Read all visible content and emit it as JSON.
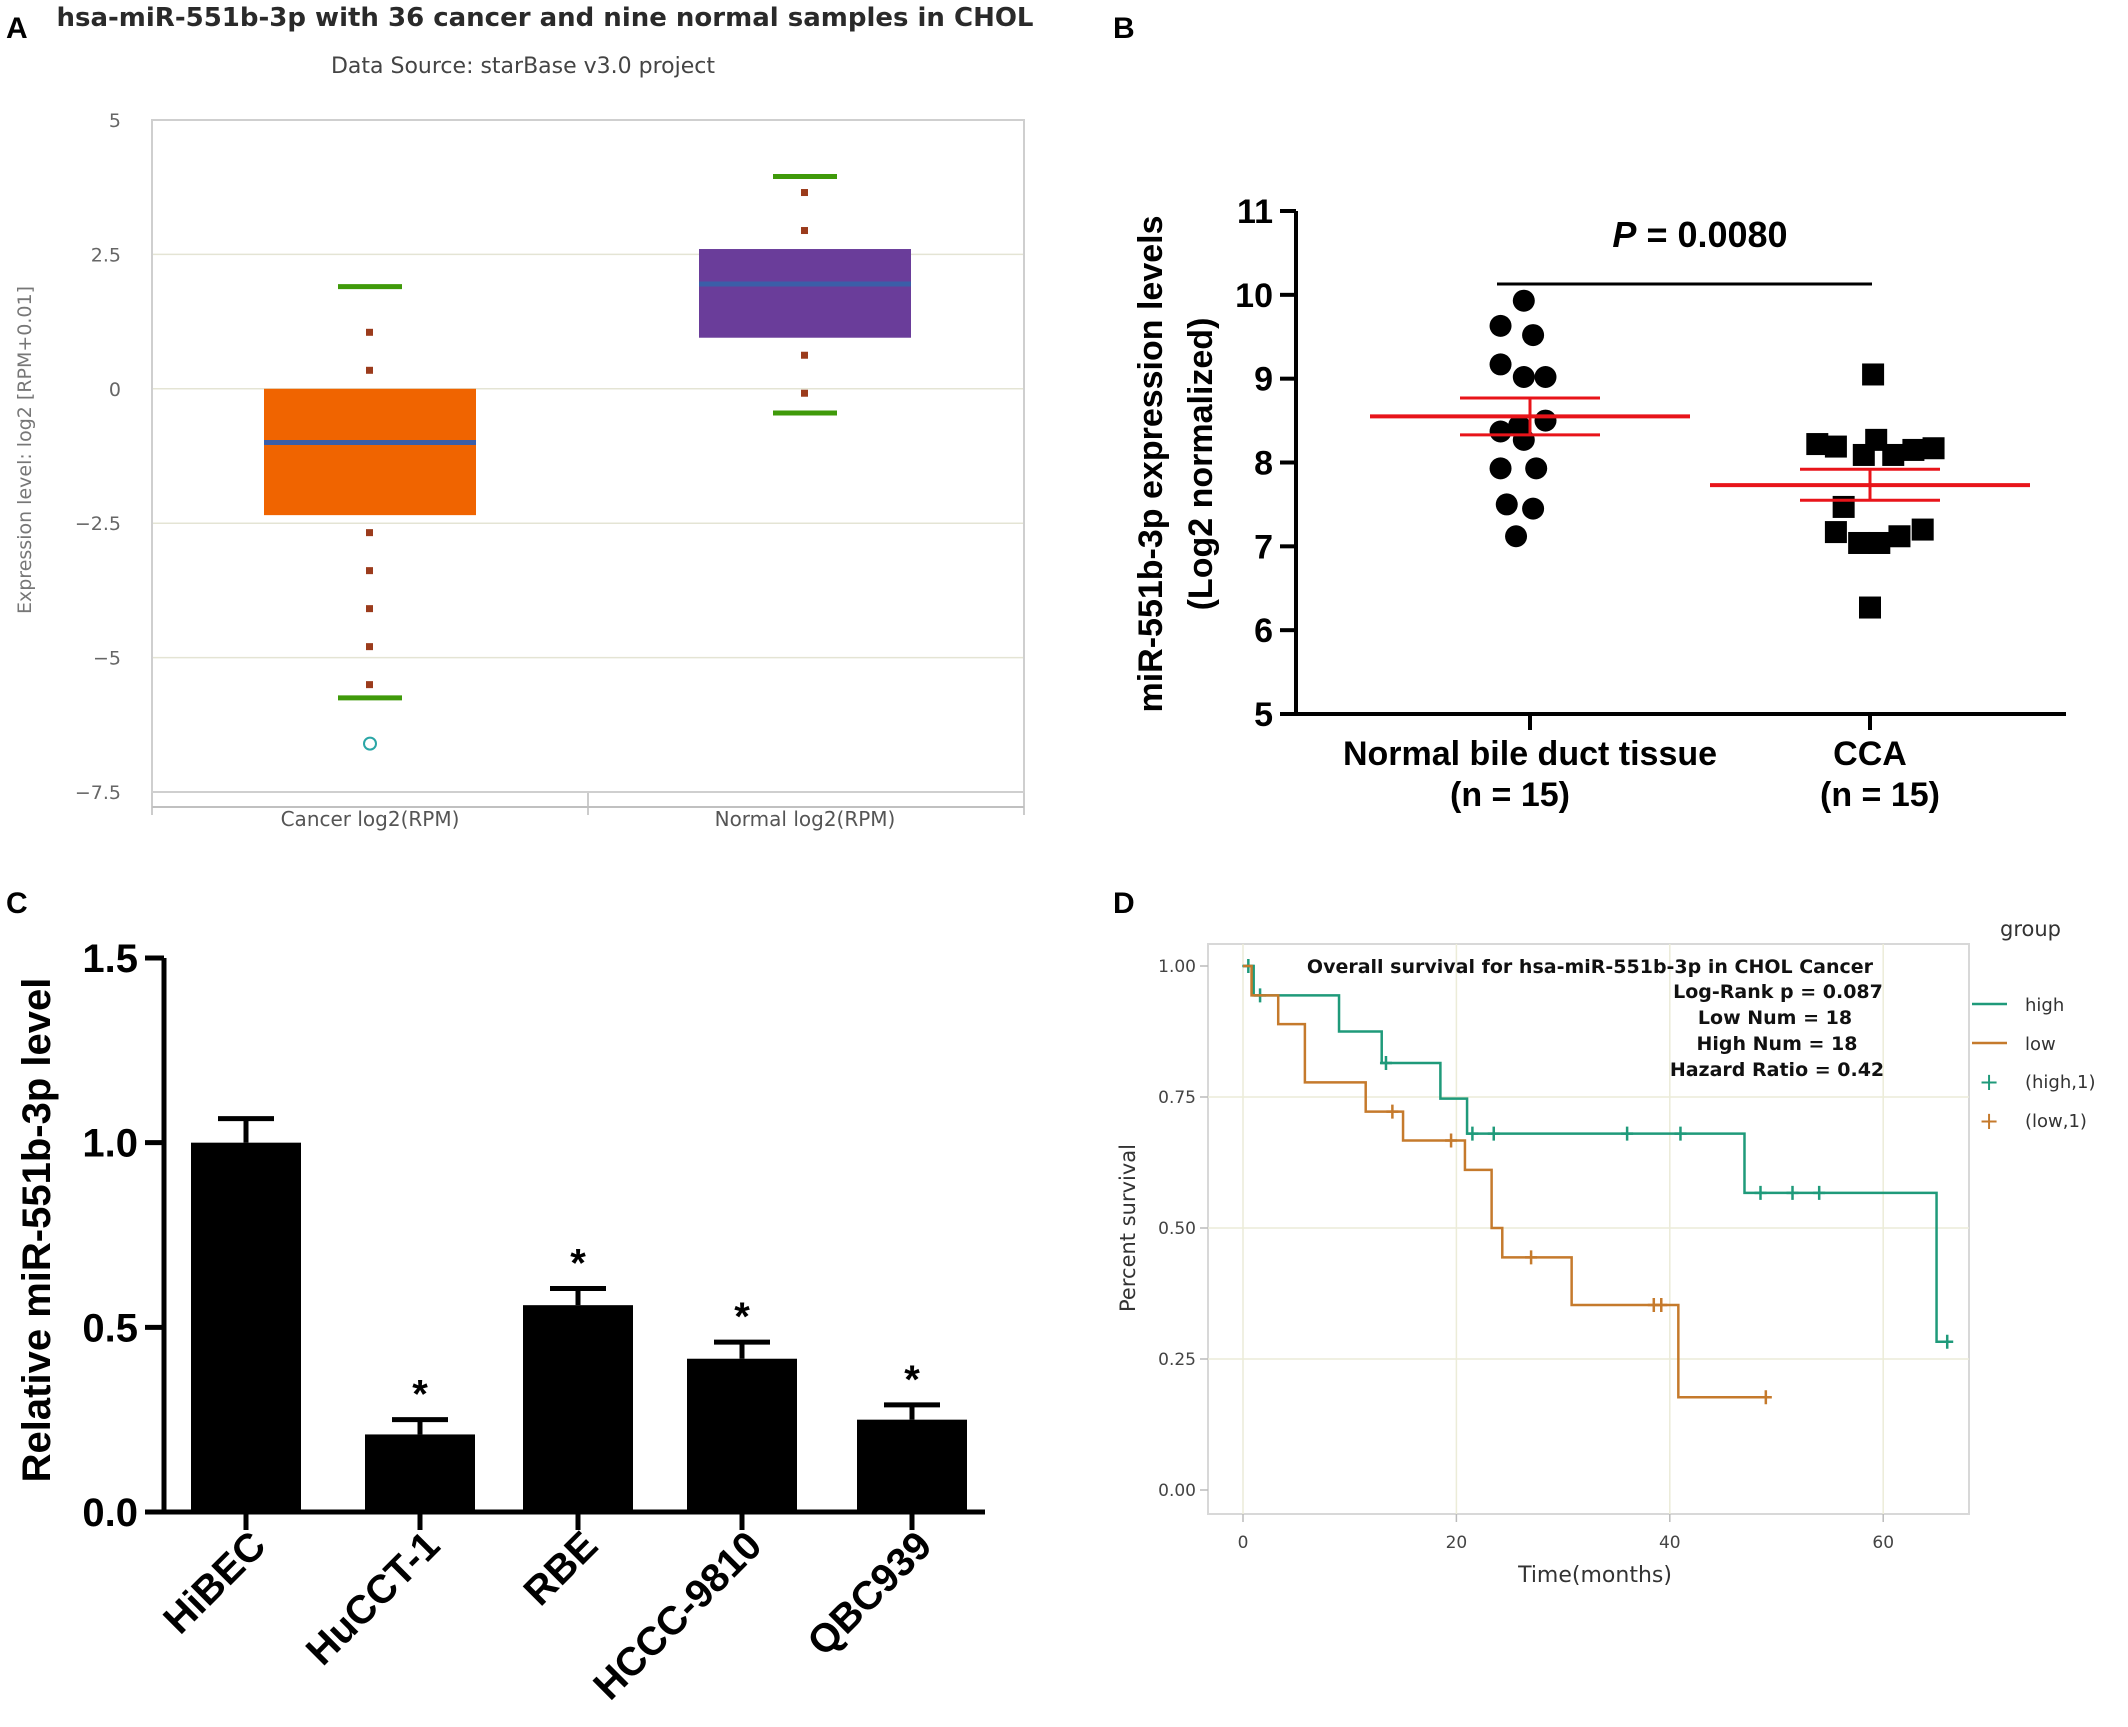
{
  "panels": {
    "A": {
      "letter": "A",
      "title": "hsa-miR-551b-3p with 36 cancer and nine normal samples in CHOL",
      "subtitle": "Data Source: starBase v3.0 project",
      "ylabel": "Expression level: log2 [RPM+0.01]",
      "yticks": [
        "5",
        "2.5",
        "0",
        "−2.5",
        "−5",
        "−7.5"
      ],
      "categories": [
        "Cancer log2(RPM)",
        "Normal log2(RPM)"
      ]
    },
    "B": {
      "letter": "B",
      "ylabel_line1": "miR-551b-3p expression levels",
      "ylabel_line2": "(Log2 normalized)",
      "yticks": [
        "5",
        "6",
        "7",
        "8",
        "9",
        "10",
        "11"
      ],
      "p_label": "P",
      "p_value": " = 0.0080",
      "groups": [
        {
          "line1": "Normal bile duct tissue",
          "line2": "(n = 15)"
        },
        {
          "line1": "CCA",
          "line2": "(n = 15)"
        }
      ]
    },
    "C": {
      "letter": "C",
      "ylabel": "Relative miR-551b-3p level",
      "yticks": [
        "0.0",
        "0.5",
        "1.0",
        "1.5"
      ],
      "categories": [
        "HiBEC",
        "HuCCT-1",
        "RBE",
        "HCCC-9810",
        "QBC939"
      ],
      "star": "*"
    },
    "D": {
      "letter": "D",
      "title": "Overall survival for hsa-miR-551b-3p in CHOL Cancer",
      "stats": [
        "Log-Rank p = 0.087",
        "Low Num = 18",
        "High Num = 18",
        "Hazard Ratio = 0.42"
      ],
      "ylabel": "Percent survival",
      "xlabel": "Time(months)",
      "yticks": [
        "0.00",
        "0.25",
        "0.50",
        "0.75",
        "1.00"
      ],
      "xticks": [
        "0",
        "20",
        "40",
        "60"
      ],
      "legend_title": "group",
      "legend": [
        "high",
        "low",
        "(high,1)",
        "(low,1)"
      ]
    }
  },
  "chart_data": [
    {
      "panel": "A",
      "type": "box",
      "title": "hsa-miR-551b-3p with 36 cancer and nine normal samples in CHOL",
      "subtitle": "Data Source: starBase v3.0 project",
      "ylabel": "Expression level: log2 [RPM+0.01]",
      "ylim": [
        -7.5,
        5
      ],
      "grid": true,
      "categories": [
        "Cancer log2(RPM)",
        "Normal log2(RPM)"
      ],
      "boxes": [
        {
          "min": -5.75,
          "q1": -2.35,
          "median": -1.0,
          "q3": 0.0,
          "max": 1.9,
          "outliers": [
            -6.6
          ],
          "color": "#f06400"
        },
        {
          "min": -0.45,
          "q1": 0.95,
          "median": 1.95,
          "q3": 2.6,
          "max": 3.95,
          "outliers": [],
          "color": "#6a3d9a"
        }
      ]
    },
    {
      "panel": "B",
      "type": "scatter",
      "ylabel": "miR-551b-3p expression levels (Log2 normalized)",
      "ylim": [
        5,
        11
      ],
      "categories": [
        "Normal bile duct tissue (n = 15)",
        "CCA (n = 15)"
      ],
      "annotation": "P = 0.0080",
      "groups": [
        {
          "marker": "circle",
          "mean": 8.55,
          "sem_upper": 8.77,
          "sem_lower": 8.33,
          "points": [
            [
              -0.04,
              9.93
            ],
            [
              -0.19,
              9.63
            ],
            [
              0.02,
              9.52
            ],
            [
              -0.19,
              9.17
            ],
            [
              -0.04,
              9.02
            ],
            [
              0.1,
              9.02
            ],
            [
              -0.19,
              8.37
            ],
            [
              -0.07,
              8.44
            ],
            [
              0.1,
              8.5
            ],
            [
              -0.04,
              8.27
            ],
            [
              -0.19,
              7.93
            ],
            [
              0.04,
              7.93
            ],
            [
              -0.15,
              7.5
            ],
            [
              0.02,
              7.45
            ],
            [
              -0.09,
              7.12
            ]
          ]
        },
        {
          "marker": "square",
          "mean": 7.73,
          "sem_upper": 7.92,
          "sem_lower": 7.55,
          "points": [
            [
              0.02,
              9.05
            ],
            [
              -0.34,
              8.22
            ],
            [
              -0.22,
              8.19
            ],
            [
              -0.04,
              8.09
            ],
            [
              0.15,
              8.09
            ],
            [
              0.04,
              8.27
            ],
            [
              0.28,
              8.15
            ],
            [
              0.41,
              8.17
            ],
            [
              -0.22,
              7.17
            ],
            [
              -0.07,
              7.04
            ],
            [
              0.06,
              7.04
            ],
            [
              0.19,
              7.12
            ],
            [
              0.34,
              7.2
            ],
            [
              -0.17,
              7.47
            ],
            [
              0.0,
              6.27
            ]
          ]
        }
      ]
    },
    {
      "panel": "C",
      "type": "bar",
      "ylabel": "Relative miR-551b-3p level",
      "ylim": [
        0,
        1.5
      ],
      "categories": [
        "HiBEC",
        "HuCCT-1",
        "RBE",
        "HCCC-9810",
        "QBC939"
      ],
      "values": [
        1.0,
        0.21,
        0.56,
        0.415,
        0.25
      ],
      "errors": [
        0.065,
        0.04,
        0.045,
        0.045,
        0.04
      ],
      "significant": [
        false,
        true,
        true,
        true,
        true
      ]
    },
    {
      "panel": "D",
      "type": "line",
      "title": "Overall survival for hsa-miR-551b-3p in CHOL Cancer",
      "xlabel": "Time(months)",
      "ylabel": "Percent survival",
      "xlim": [
        -4,
        70
      ],
      "ylim": [
        -0.05,
        1.05
      ],
      "legend_title": "group",
      "legend_position": "right",
      "series": [
        {
          "name": "high",
          "color": "#1f9a7a",
          "steps": [
            [
              0,
              1.0
            ],
            [
              1,
              0.944
            ],
            [
              9,
              0.875
            ],
            [
              13,
              0.815
            ],
            [
              18.5,
              0.747
            ],
            [
              21,
              0.68
            ],
            [
              47,
              0.567
            ],
            [
              65,
              0.283
            ],
            [
              66,
              0.283
            ]
          ],
          "censored": [
            [
              0.5,
              1.0
            ],
            [
              1.6,
              0.944
            ],
            [
              13.4,
              0.815
            ],
            [
              21.5,
              0.68
            ],
            [
              23.5,
              0.68
            ],
            [
              36,
              0.68
            ],
            [
              41,
              0.68
            ],
            [
              48.5,
              0.567
            ],
            [
              51.5,
              0.567
            ],
            [
              54,
              0.567
            ],
            [
              66,
              0.283
            ]
          ]
        },
        {
          "name": "low",
          "color": "#c57a2c",
          "steps": [
            [
              0,
              1.0
            ],
            [
              0.8,
              0.944
            ],
            [
              3.3,
              0.889
            ],
            [
              5.8,
              0.778
            ],
            [
              11.5,
              0.722
            ],
            [
              15,
              0.667
            ],
            [
              20.8,
              0.611
            ],
            [
              23.3,
              0.5
            ],
            [
              24.3,
              0.444
            ],
            [
              30.8,
              0.353
            ],
            [
              40.8,
              0.177
            ],
            [
              49,
              0.177
            ]
          ],
          "censored": [
            [
              14,
              0.722
            ],
            [
              19.5,
              0.667
            ],
            [
              27,
              0.444
            ],
            [
              38.5,
              0.353
            ],
            [
              39.2,
              0.353
            ],
            [
              49,
              0.177
            ]
          ]
        }
      ]
    }
  ]
}
